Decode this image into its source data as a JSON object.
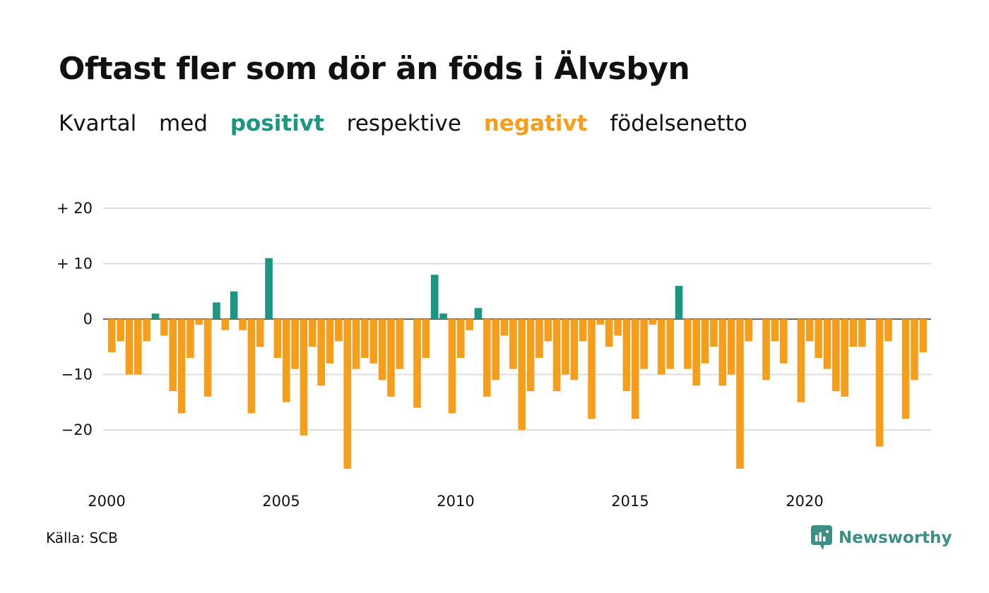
{
  "title": "Oftast fler som dör än föds i Älvsbyn",
  "subtitle": {
    "w1": "Kvartal",
    "w2": "med",
    "positive": "positivt",
    "w3": "respektive",
    "negative": "negativt",
    "w4": "födelsenetto"
  },
  "colors": {
    "positive": "#1a9683",
    "negative": "#f59e1c",
    "grid": "#dcdcdc",
    "text": "#111111",
    "brand": "#3b8f84"
  },
  "source": "Källa: SCB",
  "brand": {
    "name": "Newsworthy",
    "icon": "newsworthy-logo-icon"
  },
  "chart_data": {
    "type": "bar",
    "title": "Oftast fler som dör än föds i Älvsbyn",
    "subtitle": "Kvartal med positivt respektive negativt födelsenetto",
    "xlabel": "",
    "ylabel": "",
    "x_start": "2000 Q1",
    "x_frequency": "quarter",
    "x_ticks": [
      "2000",
      "2005",
      "2010",
      "2015",
      "2020"
    ],
    "y_ticks": [
      {
        "value": 20,
        "label": "+ 20"
      },
      {
        "value": 10,
        "label": "+ 10"
      },
      {
        "value": 0,
        "label": "0"
      },
      {
        "value": -10,
        "label": "−10"
      },
      {
        "value": -20,
        "label": "−20"
      }
    ],
    "ylim": [
      -28,
      22
    ],
    "grid": true,
    "legend": "none",
    "values": [
      -6,
      -4,
      -10,
      -10,
      -4,
      1,
      -3,
      -13,
      -17,
      -7,
      -1,
      -14,
      3,
      -2,
      5,
      -2,
      -17,
      -5,
      11,
      -7,
      -15,
      -9,
      -21,
      -5,
      -12,
      -8,
      -4,
      -27,
      -9,
      -7,
      -8,
      -11,
      -14,
      -9,
      0,
      -16,
      -7,
      8,
      1,
      -17,
      -7,
      -2,
      2,
      -14,
      -11,
      -3,
      -9,
      -20,
      -13,
      -7,
      -4,
      -13,
      -10,
      -11,
      -4,
      -18,
      -1,
      -5,
      -3,
      -13,
      -18,
      -9,
      -1,
      -10,
      -9,
      6,
      -9,
      -12,
      -8,
      -5,
      -12,
      -10,
      -27,
      -4,
      0,
      -11,
      -4,
      -8,
      0,
      -15,
      -4,
      -7,
      -9,
      -13,
      -14,
      -5,
      -5,
      0,
      -23,
      -4,
      0,
      -18,
      -11,
      -6
    ]
  }
}
